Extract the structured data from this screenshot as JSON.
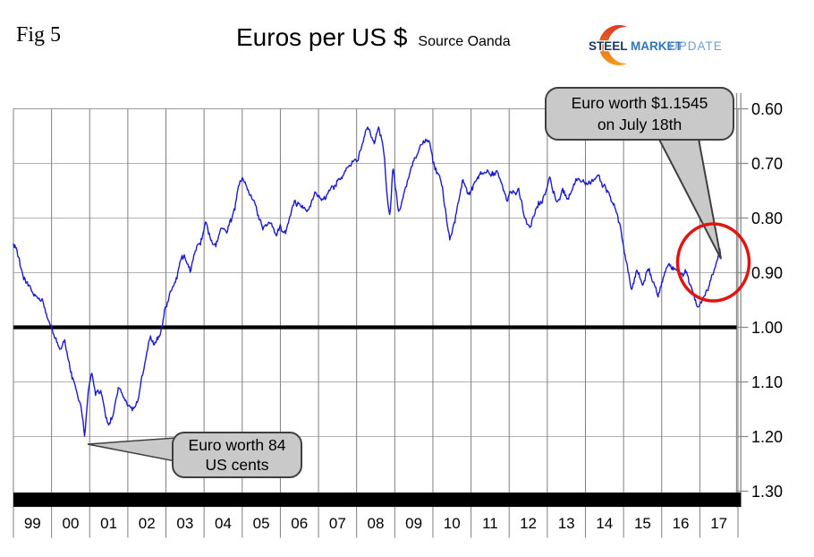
{
  "fig_label": "Fig 5",
  "header": {
    "title": "Euros per US $",
    "source": "Source Oanda"
  },
  "logo": {
    "word1": "STEEL",
    "word2": "MARKET",
    "word3": "UPDATE",
    "colors": {
      "word1": "#17375e",
      "word2": "#2e75b6",
      "word3": "#6f9ed6",
      "swoosh_top": "#dc3a22",
      "swoosh_bottom": "#f59d1e"
    }
  },
  "callouts": {
    "high": {
      "line1": "Euro worth $1.1545",
      "line2": "on July 18th"
    },
    "low": {
      "line1": "Euro worth 84",
      "line2": "US cents"
    }
  },
  "chart_data": {
    "type": "line",
    "title": "Euros per US $",
    "source": "Oanda",
    "x_labels": [
      "99",
      "00",
      "01",
      "02",
      "03",
      "04",
      "05",
      "06",
      "07",
      "08",
      "09",
      "10",
      "11",
      "12",
      "13",
      "14",
      "15",
      "16",
      "17"
    ],
    "x_range_years": [
      1999,
      2018
    ],
    "y_ticks": [
      0.6,
      0.7,
      0.8,
      0.9,
      1.0,
      1.1,
      1.2,
      1.3
    ],
    "y_range": [
      0.6,
      1.3
    ],
    "y_axis_inverted": true,
    "y_axis_side": "right",
    "grid": true,
    "reference_line_value": 1.0,
    "line_color": "#1c1ccd",
    "grid_color_vertical": "#7f7f7f",
    "grid_color_horizontal": "#b2b2b2",
    "highlight_circle_color": "#e01410",
    "callout_fill": "#c9c9c9",
    "callout_border": "#3f3f3f",
    "end_point": {
      "date": "July 18th",
      "usd_per_euro": 1.1545,
      "euros_per_usd": 0.866
    },
    "low_point": {
      "year_approx": 2000.87,
      "usd_per_euro": 0.84,
      "euros_per_usd": 1.205
    },
    "series": [
      {
        "name": "Euros per US $",
        "anchors": [
          [
            1999.0,
            0.847
          ],
          [
            1999.25,
            0.9
          ],
          [
            1999.5,
            0.93
          ],
          [
            1999.75,
            0.95
          ],
          [
            2000.0,
            1.0
          ],
          [
            2000.2,
            1.04
          ],
          [
            2000.35,
            1.02
          ],
          [
            2000.5,
            1.08
          ],
          [
            2000.7,
            1.13
          ],
          [
            2000.8,
            1.16
          ],
          [
            2000.87,
            1.205
          ],
          [
            2000.95,
            1.13
          ],
          [
            2001.05,
            1.09
          ],
          [
            2001.15,
            1.13
          ],
          [
            2001.3,
            1.12
          ],
          [
            2001.5,
            1.18
          ],
          [
            2001.62,
            1.155
          ],
          [
            2001.75,
            1.11
          ],
          [
            2001.9,
            1.12
          ],
          [
            2002.0,
            1.135
          ],
          [
            2002.15,
            1.15
          ],
          [
            2002.3,
            1.12
          ],
          [
            2002.45,
            1.06
          ],
          [
            2002.6,
            1.015
          ],
          [
            2002.7,
            1.03
          ],
          [
            2002.8,
            1.02
          ],
          [
            2002.9,
            0.995
          ],
          [
            2003.0,
            0.955
          ],
          [
            2003.15,
            0.925
          ],
          [
            2003.3,
            0.91
          ],
          [
            2003.42,
            0.875
          ],
          [
            2003.55,
            0.885
          ],
          [
            2003.65,
            0.9
          ],
          [
            2003.8,
            0.855
          ],
          [
            2003.95,
            0.83
          ],
          [
            2004.05,
            0.795
          ],
          [
            2004.15,
            0.82
          ],
          [
            2004.3,
            0.845
          ],
          [
            2004.45,
            0.825
          ],
          [
            2004.6,
            0.83
          ],
          [
            2004.75,
            0.805
          ],
          [
            2004.9,
            0.755
          ],
          [
            2005.0,
            0.738
          ],
          [
            2005.15,
            0.765
          ],
          [
            2005.35,
            0.795
          ],
          [
            2005.55,
            0.825
          ],
          [
            2005.7,
            0.812
          ],
          [
            2005.88,
            0.848
          ],
          [
            2006.0,
            0.83
          ],
          [
            2006.15,
            0.84
          ],
          [
            2006.35,
            0.782
          ],
          [
            2006.55,
            0.79
          ],
          [
            2006.75,
            0.788
          ],
          [
            2006.95,
            0.757
          ],
          [
            2007.1,
            0.765
          ],
          [
            2007.3,
            0.74
          ],
          [
            2007.45,
            0.742
          ],
          [
            2007.6,
            0.72
          ],
          [
            2007.75,
            0.7
          ],
          [
            2007.9,
            0.68
          ],
          [
            2008.0,
            0.685
          ],
          [
            2008.15,
            0.655
          ],
          [
            2008.3,
            0.628
          ],
          [
            2008.45,
            0.648
          ],
          [
            2008.57,
            0.63
          ],
          [
            2008.7,
            0.675
          ],
          [
            2008.82,
            0.775
          ],
          [
            2008.88,
            0.8
          ],
          [
            2008.95,
            0.705
          ],
          [
            2009.1,
            0.785
          ],
          [
            2009.25,
            0.752
          ],
          [
            2009.4,
            0.72
          ],
          [
            2009.55,
            0.705
          ],
          [
            2009.7,
            0.69
          ],
          [
            2009.9,
            0.665
          ],
          [
            2010.0,
            0.697
          ],
          [
            2010.2,
            0.735
          ],
          [
            2010.45,
            0.838
          ],
          [
            2010.6,
            0.788
          ],
          [
            2010.78,
            0.718
          ],
          [
            2010.9,
            0.752
          ],
          [
            2011.0,
            0.745
          ],
          [
            2011.1,
            0.727
          ],
          [
            2011.25,
            0.7
          ],
          [
            2011.4,
            0.688
          ],
          [
            2011.55,
            0.7
          ],
          [
            2011.7,
            0.705
          ],
          [
            2011.85,
            0.742
          ],
          [
            2011.95,
            0.765
          ],
          [
            2012.1,
            0.755
          ],
          [
            2012.25,
            0.748
          ],
          [
            2012.4,
            0.79
          ],
          [
            2012.56,
            0.82
          ],
          [
            2012.7,
            0.798
          ],
          [
            2012.9,
            0.768
          ],
          [
            2013.05,
            0.737
          ],
          [
            2013.25,
            0.778
          ],
          [
            2013.4,
            0.755
          ],
          [
            2013.55,
            0.768
          ],
          [
            2013.7,
            0.74
          ],
          [
            2013.85,
            0.73
          ],
          [
            2014.0,
            0.727
          ],
          [
            2014.2,
            0.732
          ],
          [
            2014.35,
            0.72
          ],
          [
            2014.5,
            0.737
          ],
          [
            2014.7,
            0.775
          ],
          [
            2014.85,
            0.805
          ],
          [
            2015.0,
            0.85
          ],
          [
            2015.2,
            0.932
          ],
          [
            2015.35,
            0.888
          ],
          [
            2015.5,
            0.912
          ],
          [
            2015.65,
            0.885
          ],
          [
            2015.8,
            0.915
          ],
          [
            2015.9,
            0.945
          ],
          [
            2016.05,
            0.908
          ],
          [
            2016.2,
            0.885
          ],
          [
            2016.35,
            0.892
          ],
          [
            2016.5,
            0.905
          ],
          [
            2016.65,
            0.895
          ],
          [
            2016.8,
            0.918
          ],
          [
            2016.95,
            0.955
          ],
          [
            2017.05,
            0.94
          ],
          [
            2017.2,
            0.933
          ],
          [
            2017.3,
            0.915
          ],
          [
            2017.4,
            0.895
          ],
          [
            2017.48,
            0.882
          ],
          [
            2017.54,
            0.866
          ]
        ]
      }
    ]
  }
}
